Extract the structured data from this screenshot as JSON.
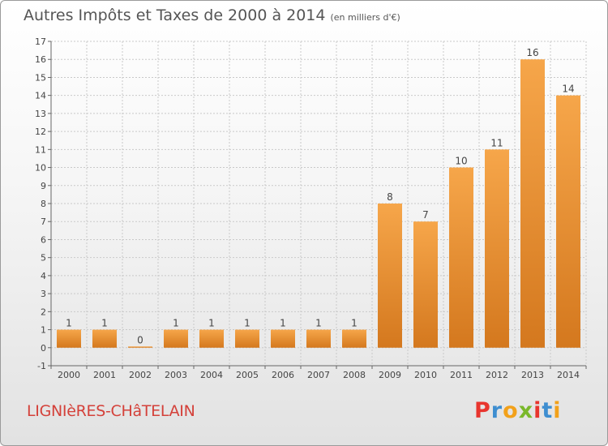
{
  "header": {
    "title": "Autres Impôts et Taxes de 2000 à 2014",
    "unit": "(en milliers d'€)"
  },
  "footer": {
    "commune": "LIGNIèRES-CHâTELAIN",
    "logo_text": "Proxiti",
    "logo_colors": [
      "#e8352e",
      "#3e8ed0",
      "#f2a11a",
      "#7ab82b",
      "#e8352e",
      "#3e8ed0",
      "#f2a11a"
    ]
  },
  "colors": {
    "bar_light": "#f6a64a",
    "bar_dark": "#d4781e",
    "grid": "#c9c9c9"
  },
  "chart_data": {
    "type": "bar",
    "categories": [
      "2000",
      "2001",
      "2002",
      "2003",
      "2004",
      "2005",
      "2006",
      "2007",
      "2008",
      "2009",
      "2010",
      "2011",
      "2012",
      "2013",
      "2014"
    ],
    "values": [
      1,
      1,
      0,
      1,
      1,
      1,
      1,
      1,
      1,
      8,
      7,
      10,
      11,
      16,
      14
    ],
    "value_labels": [
      "1",
      "1",
      "0",
      "1",
      "1",
      "1",
      "1",
      "1",
      "1",
      "8",
      "7",
      "10",
      "11",
      "16",
      "14"
    ],
    "yticks": [
      -1,
      0,
      1,
      2,
      3,
      4,
      5,
      6,
      7,
      8,
      9,
      10,
      11,
      12,
      13,
      14,
      15,
      16,
      17
    ],
    "ylim": [
      -1,
      17
    ],
    "grid": true,
    "title": "Autres Impôts et Taxes de 2000 à 2014",
    "xlabel": "",
    "ylabel": ""
  }
}
